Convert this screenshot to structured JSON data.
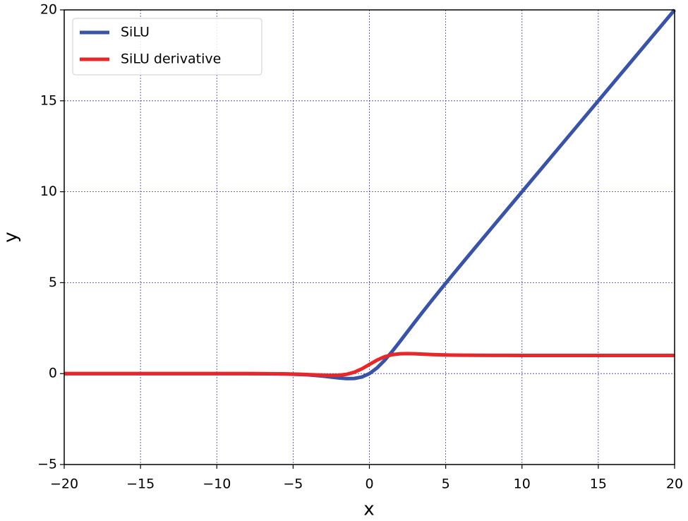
{
  "chart_data": {
    "type": "line",
    "xlabel": "x",
    "ylabel": "y",
    "x": [
      -20,
      -19,
      -18,
      -17,
      -16,
      -15,
      -14,
      -13,
      -12,
      -11,
      -10,
      -9,
      -8,
      -7,
      -6,
      -5.5,
      -5,
      -4.5,
      -4,
      -3.5,
      -3,
      -2.5,
      -2,
      -1.5,
      -1,
      -0.5,
      0,
      0.5,
      1,
      1.5,
      2,
      2.5,
      3,
      3.5,
      4,
      4.5,
      5,
      5.5,
      6,
      7,
      8,
      9,
      10,
      11,
      12,
      13,
      14,
      15,
      16,
      17,
      18,
      19,
      20
    ],
    "series": [
      {
        "name": "SiLU",
        "color": "#3a53a4",
        "values": [
          0,
          0,
          0,
          0,
          0,
          0,
          0,
          0,
          0,
          0,
          0,
          0,
          -0.003,
          -0.006,
          -0.015,
          -0.022,
          -0.034,
          -0.05,
          -0.072,
          -0.103,
          -0.142,
          -0.19,
          -0.238,
          -0.274,
          -0.269,
          -0.189,
          0,
          0.311,
          0.731,
          1.226,
          1.762,
          2.31,
          2.858,
          3.397,
          3.928,
          4.45,
          4.967,
          5.478,
          5.985,
          6.994,
          7.997,
          8.999,
          10,
          11,
          12,
          13,
          14,
          15,
          16,
          17,
          18,
          19,
          20
        ]
      },
      {
        "name": "SiLU derivative",
        "color": "#e8272a",
        "values": [
          0,
          0,
          0,
          0,
          0,
          0,
          0,
          0,
          0,
          0,
          0,
          0,
          -0.002,
          -0.006,
          -0.012,
          -0.018,
          -0.027,
          -0.038,
          -0.053,
          -0.07,
          -0.088,
          -0.099,
          -0.091,
          -0.041,
          0.072,
          0.26,
          0.5,
          0.74,
          0.928,
          1.041,
          1.091,
          1.099,
          1.088,
          1.07,
          1.053,
          1.038,
          1.027,
          1.018,
          1.012,
          1.006,
          1.002,
          1.001,
          1,
          1,
          1,
          1,
          1,
          1,
          1,
          1,
          1,
          1,
          1
        ]
      }
    ],
    "xlim": [
      -20,
      20
    ],
    "ylim": [
      -5,
      20
    ],
    "xticks": [
      {
        "value": -20,
        "label": "−20"
      },
      {
        "value": -15,
        "label": "−15"
      },
      {
        "value": -10,
        "label": "−10"
      },
      {
        "value": -5,
        "label": "−5"
      },
      0,
      5,
      10,
      15,
      20
    ],
    "yticks": [
      {
        "value": -5,
        "label": "−5"
      },
      0,
      5,
      10,
      15,
      20
    ],
    "grid": true,
    "grid_color": "#3a3aa0",
    "legend": "upper left"
  }
}
